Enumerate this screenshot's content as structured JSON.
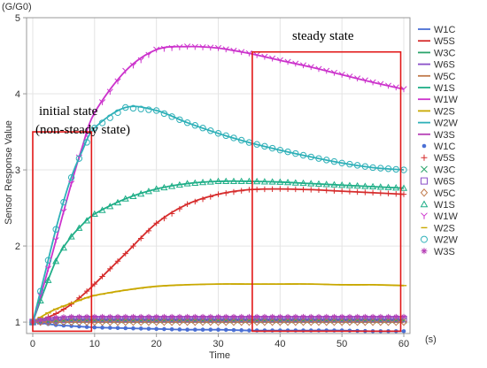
{
  "chart_data": {
    "type": "line",
    "unit_y": "(G/G0)",
    "unit_x": "(s)",
    "xlabel": "Time",
    "ylabel": "Sensor Response Value",
    "xlim": [
      -1,
      61
    ],
    "ylim": [
      0.85,
      5
    ],
    "xticks": [
      0,
      10,
      20,
      30,
      40,
      50,
      60
    ],
    "yticks": [
      1,
      2,
      3,
      4,
      5
    ],
    "grid": true,
    "legend_position": "right",
    "annotations": [
      {
        "text": "initial state",
        "x_range": [
          0,
          9.5
        ],
        "y_range": [
          0.88,
          3.5
        ]
      },
      {
        "text": "(non-steady state)"
      },
      {
        "text": "steady state",
        "x_range": [
          35.5,
          59.5
        ],
        "y_range": [
          0.88,
          4.55
        ]
      }
    ],
    "x": [
      0,
      2,
      4,
      6,
      8,
      10,
      15,
      20,
      25,
      30,
      35,
      40,
      45,
      50,
      55,
      60
    ],
    "series": [
      {
        "name": "W1C",
        "color": "#4a6fd4",
        "marker": "dot",
        "values": [
          1.0,
          0.98,
          0.96,
          0.95,
          0.94,
          0.93,
          0.92,
          0.91,
          0.9,
          0.9,
          0.89,
          0.89,
          0.89,
          0.89,
          0.88,
          0.88
        ]
      },
      {
        "name": "W5S",
        "color": "#d62c2c",
        "marker": "plus",
        "values": [
          1.0,
          1.05,
          1.12,
          1.22,
          1.35,
          1.5,
          1.9,
          2.3,
          2.55,
          2.68,
          2.74,
          2.75,
          2.74,
          2.72,
          2.7,
          2.68
        ]
      },
      {
        "name": "W3C",
        "color": "#2aa36b",
        "marker": "x",
        "values": [
          1.0,
          1.01,
          1.02,
          1.02,
          1.02,
          1.02,
          1.02,
          1.02,
          1.02,
          1.02,
          1.02,
          1.02,
          1.02,
          1.02,
          1.02,
          1.02
        ]
      },
      {
        "name": "W6S",
        "color": "#8a4fc8",
        "marker": "square",
        "values": [
          1.0,
          1.02,
          1.03,
          1.04,
          1.04,
          1.04,
          1.04,
          1.04,
          1.04,
          1.04,
          1.04,
          1.04,
          1.04,
          1.04,
          1.04,
          1.04
        ]
      },
      {
        "name": "W5C",
        "color": "#c0794a",
        "marker": "diamond",
        "values": [
          1.0,
          1.0,
          1.0,
          1.0,
          1.0,
          1.0,
          1.0,
          1.0,
          1.0,
          1.0,
          1.0,
          1.0,
          1.0,
          1.0,
          1.0,
          1.0
        ]
      },
      {
        "name": "W1S",
        "color": "#1fae87",
        "marker": "triangle",
        "values": [
          1.0,
          1.45,
          1.85,
          2.1,
          2.28,
          2.42,
          2.62,
          2.75,
          2.82,
          2.85,
          2.85,
          2.84,
          2.82,
          2.8,
          2.78,
          2.76
        ]
      },
      {
        "name": "W1W",
        "color": "#cc33cc",
        "marker": "y",
        "values": [
          1.0,
          1.55,
          2.15,
          2.75,
          3.3,
          3.75,
          4.3,
          4.58,
          4.62,
          4.6,
          4.53,
          4.44,
          4.35,
          4.25,
          4.15,
          4.06
        ]
      },
      {
        "name": "W2S",
        "color": "#c9a800",
        "marker": "dash",
        "values": [
          1.0,
          1.1,
          1.18,
          1.24,
          1.3,
          1.35,
          1.42,
          1.47,
          1.49,
          1.5,
          1.5,
          1.5,
          1.5,
          1.49,
          1.49,
          1.48
        ]
      },
      {
        "name": "W2W",
        "color": "#2eb0b8",
        "marker": "circle",
        "values": [
          1.0,
          1.65,
          2.3,
          2.85,
          3.25,
          3.55,
          3.82,
          3.78,
          3.62,
          3.48,
          3.36,
          3.26,
          3.17,
          3.09,
          3.03,
          3.0
        ]
      },
      {
        "name": "W3S",
        "color": "#b53fb5",
        "marker": "asterisk",
        "values": [
          1.0,
          1.04,
          1.06,
          1.07,
          1.07,
          1.07,
          1.07,
          1.07,
          1.07,
          1.07,
          1.07,
          1.07,
          1.07,
          1.07,
          1.07,
          1.07
        ]
      }
    ]
  }
}
